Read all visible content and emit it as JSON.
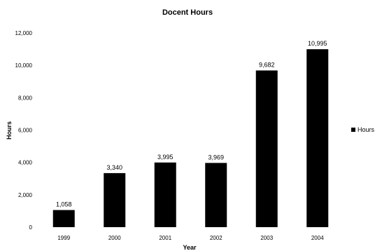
{
  "chart_data": {
    "type": "bar",
    "title": "Docent Hours",
    "xlabel": "Year",
    "ylabel": "Hours",
    "categories": [
      "1999",
      "2000",
      "2001",
      "2002",
      "2003",
      "2004"
    ],
    "series": [
      {
        "name": "Hours",
        "values": [
          1058,
          3340,
          3995,
          3969,
          9682,
          10995
        ]
      }
    ],
    "data_labels": [
      "1,058",
      "3,340",
      "3,995",
      "3,969",
      "9,682",
      "10,995"
    ],
    "y_ticks": [
      "0",
      "2,000",
      "4,000",
      "6,000",
      "8,000",
      "10,000",
      "12,000"
    ],
    "ylim": [
      0,
      12000
    ],
    "grid": false,
    "legend": "right",
    "bar_color": "#000000"
  }
}
